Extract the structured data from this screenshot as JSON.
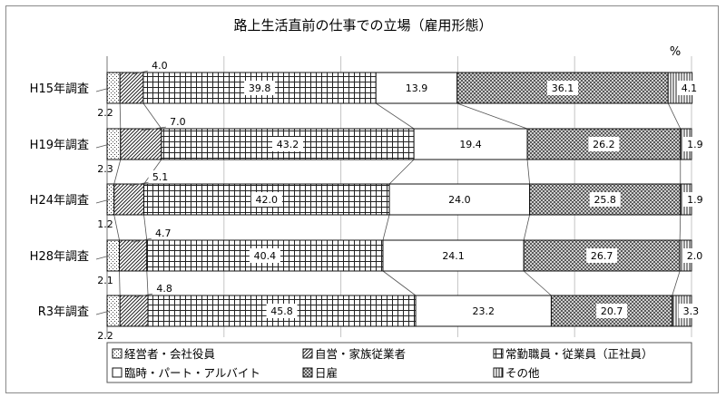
{
  "chart_data": {
    "type": "bar",
    "stacked": true,
    "orientation": "horizontal",
    "title": "路上生活直前の仕事での立場（雇用形態）",
    "unit": "%",
    "xlim": [
      0,
      100
    ],
    "grid": true,
    "legend_position": "bottom",
    "categories": [
      "H15年調査",
      "H19年調査",
      "H24年調査",
      "H28年調査",
      "R3年調査"
    ],
    "series": [
      {
        "name": "経営者・会社役員",
        "pattern": "dots-fine",
        "values": [
          2.2,
          2.3,
          1.2,
          2.1,
          2.2
        ]
      },
      {
        "name": "自営・家族従業者",
        "pattern": "diagonal",
        "values": [
          4.0,
          7.0,
          5.1,
          4.7,
          4.8
        ]
      },
      {
        "name": "常勤職員・従業員（正社員）",
        "pattern": "grid",
        "values": [
          39.8,
          43.2,
          42.0,
          40.4,
          45.8
        ]
      },
      {
        "name": "臨時・パート・アルバイト",
        "pattern": "blank",
        "values": [
          13.9,
          19.4,
          24.0,
          24.1,
          23.2
        ]
      },
      {
        "name": "日雇",
        "pattern": "crosshatch",
        "values": [
          36.1,
          26.2,
          25.8,
          26.7,
          20.7
        ]
      },
      {
        "name": "その他",
        "pattern": "vertical",
        "values": [
          4.1,
          1.9,
          1.9,
          2.0,
          3.3
        ]
      }
    ],
    "value_labels": [
      [
        "2.2",
        "4.0",
        "39.8",
        "13.9",
        "36.1",
        "4.1"
      ],
      [
        "2.3",
        "7.0",
        "43.2",
        "19.4",
        "26.2",
        "1.9"
      ],
      [
        "1.2",
        "5.1",
        "42.0",
        "24.0",
        "25.8",
        "1.9"
      ],
      [
        "2.1",
        "4.7",
        "40.4",
        "24.1",
        "26.7",
        "2.0"
      ],
      [
        "2.2",
        "4.8",
        "45.8",
        "23.2",
        "20.7",
        "3.3"
      ]
    ]
  }
}
